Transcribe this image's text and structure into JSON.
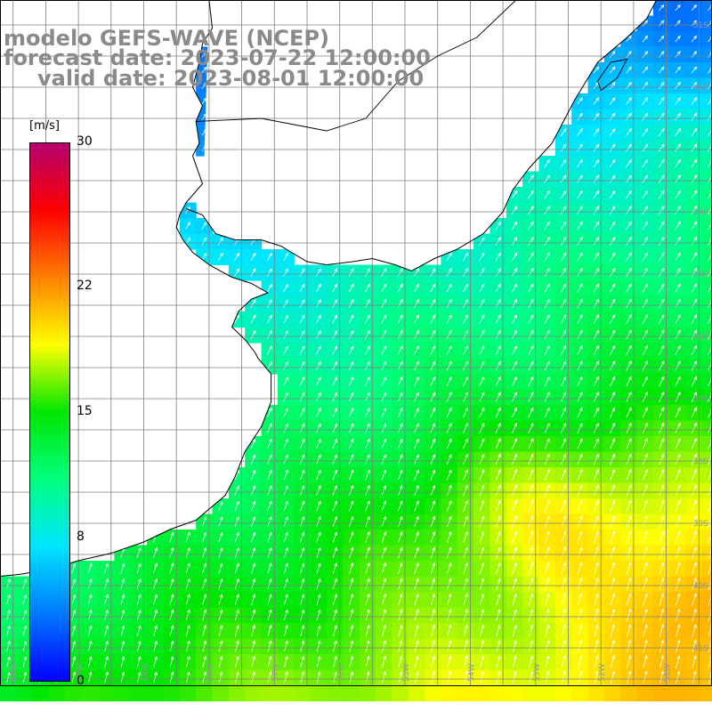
{
  "title": {
    "model": "modelo GEFS-WAVE (NCEP)",
    "forecast": "forecast date: 2023-07-22 12:00:00",
    "valid": "valid date: 2023-08-01 12:00:00"
  },
  "colorbar": {
    "unit": "[m/s]",
    "min": 0,
    "max": 30,
    "ticks": [
      {
        "value": 30,
        "label": "30"
      },
      {
        "value": 22,
        "label": "22"
      },
      {
        "value": 15,
        "label": "15"
      },
      {
        "value": 8,
        "label": "8"
      },
      {
        "value": 0,
        "label": "0"
      }
    ],
    "colors": [
      "#0000ff",
      "#0078ff",
      "#00e6ff",
      "#00ff7f",
      "#00e600",
      "#ffff00",
      "#ff8000",
      "#ff0000",
      "#b4006e"
    ]
  },
  "map": {
    "extent": {
      "lon": [
        -61.2,
        -50.3
      ],
      "lat": [
        -41.6,
        -30.6
      ]
    },
    "lon_labels": [
      {
        "lon": -61,
        "label": "61W"
      },
      {
        "lon": -60,
        "label": "60W"
      },
      {
        "lon": -59,
        "label": "59W"
      },
      {
        "lon": -58,
        "label": "58W"
      },
      {
        "lon": -57,
        "label": "57W"
      },
      {
        "lon": -56,
        "label": "56W"
      },
      {
        "lon": -55,
        "label": "55W"
      },
      {
        "lon": -54,
        "label": "54W"
      },
      {
        "lon": -53,
        "label": "53W"
      },
      {
        "lon": -52,
        "label": "52W"
      },
      {
        "lon": -51,
        "label": "51W"
      }
    ],
    "lat_labels": [
      {
        "lat": -31,
        "label": "31S"
      },
      {
        "lat": -32,
        "label": "32S"
      },
      {
        "lat": -34,
        "label": "34S"
      },
      {
        "lat": -35,
        "label": "35S"
      },
      {
        "lat": -36,
        "label": "36S"
      },
      {
        "lat": -37,
        "label": "37S"
      },
      {
        "lat": -38,
        "label": "38S"
      },
      {
        "lat": -39,
        "label": "39S"
      },
      {
        "lat": -40,
        "label": "40S"
      },
      {
        "lat": -41,
        "label": "41S"
      }
    ],
    "grid_spacing_deg": 0.5,
    "field_cell_deg": 0.25,
    "land_color": "#ffffff",
    "coast_color": "#000000",
    "arrow_color": "#ffffff",
    "grid_color": "#7f7f7f"
  }
}
